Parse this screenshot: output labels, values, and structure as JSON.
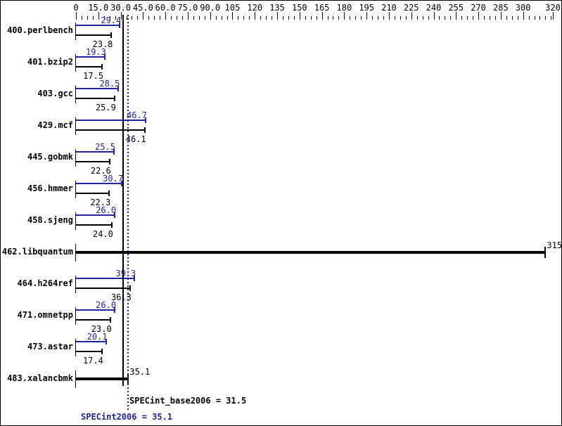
{
  "colors": {
    "peak_blue": "#2222a2",
    "base_black": "#000000",
    "background": "#ffffff",
    "border": "#000000"
  },
  "chart_data": {
    "type": "bar",
    "orientation": "horizontal",
    "title": "",
    "xlabel": "",
    "ylabel": "",
    "xlim": [
      0,
      320
    ],
    "grid": false,
    "minor_tick_step": 3.75,
    "axis_labels": [
      {
        "v": 0,
        "t": "0"
      },
      {
        "v": 15,
        "t": "15.0"
      },
      {
        "v": 30,
        "t": "30.0"
      },
      {
        "v": 45,
        "t": "45.0"
      },
      {
        "v": 60,
        "t": "60.0"
      },
      {
        "v": 75,
        "t": "75.0"
      },
      {
        "v": 90,
        "t": "90.0"
      },
      {
        "v": 105,
        "t": "105"
      },
      {
        "v": 120,
        "t": "120"
      },
      {
        "v": 135,
        "t": "135"
      },
      {
        "v": 150,
        "t": "150"
      },
      {
        "v": 165,
        "t": "165"
      },
      {
        "v": 180,
        "t": "180"
      },
      {
        "v": 195,
        "t": "195"
      },
      {
        "v": 210,
        "t": "210"
      },
      {
        "v": 225,
        "t": "225"
      },
      {
        "v": 240,
        "t": "240"
      },
      {
        "v": 255,
        "t": "255"
      },
      {
        "v": 270,
        "t": "270"
      },
      {
        "v": 285,
        "t": "285"
      },
      {
        "v": 300,
        "t": "300"
      },
      {
        "v": 320,
        "t": "320"
      }
    ],
    "series": [
      {
        "name": "SPECint2006 (peak)",
        "color": "#2222a2",
        "value_label_position": "above-bar"
      },
      {
        "name": "SPECint_base2006 (base)",
        "color": "#000000",
        "value_label_position": "below-bar"
      }
    ],
    "rows": [
      {
        "label": "400.perlbench",
        "peak": 29.4,
        "peak_text": "29.4",
        "base": 23.8,
        "base_text": "23.8"
      },
      {
        "label": "401.bzip2",
        "peak": 19.3,
        "peak_text": "19.3",
        "base": 17.5,
        "base_text": "17.5"
      },
      {
        "label": "403.gcc",
        "peak": 28.5,
        "peak_text": "28.5",
        "base": 25.9,
        "base_text": "25.9"
      },
      {
        "label": "429.mcf",
        "peak": 46.7,
        "peak_text": "46.7",
        "base": 46.1,
        "base_text": "46.1"
      },
      {
        "label": "445.gobmk",
        "peak": 25.5,
        "peak_text": "25.5",
        "base": 22.6,
        "base_text": "22.6"
      },
      {
        "label": "456.hmmer",
        "peak": 30.7,
        "peak_text": "30.7",
        "base": 22.3,
        "base_text": "22.3"
      },
      {
        "label": "458.sjeng",
        "peak": 26.0,
        "peak_text": "26.0",
        "base": 24.0,
        "base_text": "24.0"
      },
      {
        "label": "462.libquantum",
        "single": 315,
        "single_text": "315"
      },
      {
        "label": "464.h264ref",
        "peak": 39.3,
        "peak_text": "39.3",
        "base": 36.3,
        "base_text": "36.3"
      },
      {
        "label": "471.omnetpp",
        "peak": 26.0,
        "peak_text": "26.0",
        "base": 23.0,
        "base_text": "23.0"
      },
      {
        "label": "473.astar",
        "peak": 20.1,
        "peak_text": "20.1",
        "base": 17.4,
        "base_text": "17.4"
      },
      {
        "label": "483.xalancbmk",
        "single": 35.1,
        "single_text": "35.1"
      }
    ],
    "reference_lines": [
      {
        "name": "base_mean",
        "value": 31.5,
        "style": "solid",
        "color": "#000000",
        "text": "SPECint_base2006 = 31.5"
      },
      {
        "name": "peak_mean",
        "value": 35.1,
        "style": "dotted",
        "color": "#2222a2",
        "text": "SPECint2006 = 35.1"
      }
    ]
  }
}
